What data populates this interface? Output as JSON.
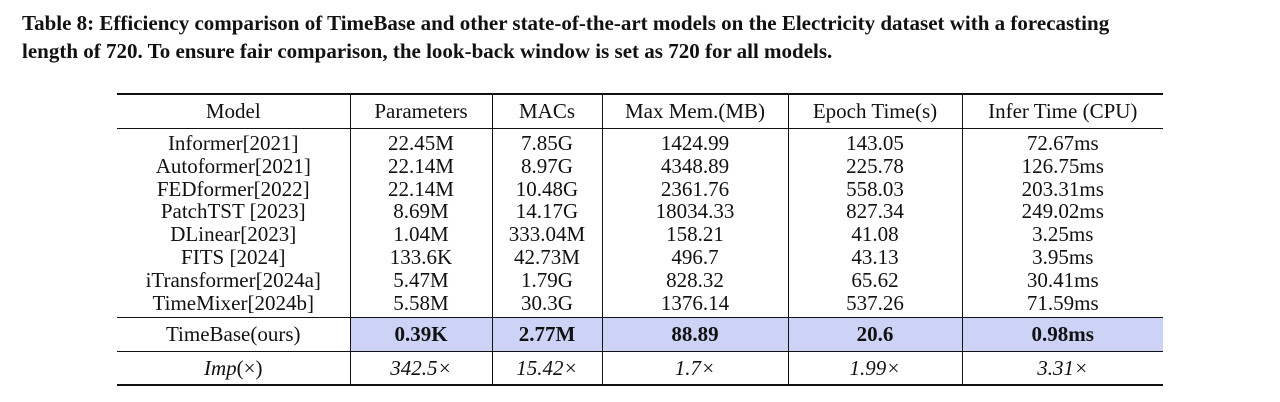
{
  "caption": {
    "line1": "Table 8: Efficiency comparison of TimeBase and other state-of-the-art models on the Electricity dataset with a forecasting",
    "line2": "length of 720. To ensure fair comparison, the look-back window is set as 720 for all models."
  },
  "columns": [
    "Model",
    "Parameters",
    "MACs",
    "Max Mem.(MB)",
    "Epoch Time(s)",
    "Infer Time (CPU)"
  ],
  "rows": [
    [
      "Informer[2021]",
      "22.45M",
      "7.85G",
      "1424.99",
      "143.05",
      "72.67ms"
    ],
    [
      "Autoformer[2021]",
      "22.14M",
      "8.97G",
      "4348.89",
      "225.78",
      "126.75ms"
    ],
    [
      "FEDformer[2022]",
      "22.14M",
      "10.48G",
      "2361.76",
      "558.03",
      "203.31ms"
    ],
    [
      "PatchTST [2023]",
      "8.69M",
      "14.17G",
      "18034.33",
      "827.34",
      "249.02ms"
    ],
    [
      "DLinear[2023]",
      "1.04M",
      "333.04M",
      "158.21",
      "41.08",
      "3.25ms"
    ],
    [
      "FITS [2024]",
      "133.6K",
      "42.73M",
      "496.7",
      "43.13",
      "3.95ms"
    ],
    [
      "iTransformer[2024a]",
      "5.47M",
      "1.79G",
      "828.32",
      "65.62",
      "30.41ms"
    ],
    [
      "TimeMixer[2024b]",
      "5.58M",
      "30.3G",
      "1376.14",
      "537.26",
      "71.59ms"
    ]
  ],
  "ours": [
    "TimeBase(ours)",
    "0.39K",
    "2.77M",
    "88.89",
    "20.6",
    "0.98ms"
  ],
  "improvement": {
    "label_italic": "Imp",
    "label_rest": "(×)",
    "values": [
      "342.5×",
      "15.42×",
      "1.7×",
      "1.99×",
      "3.31×"
    ]
  },
  "colors": {
    "highlight": "#cdd3f7",
    "text": "#111111"
  }
}
